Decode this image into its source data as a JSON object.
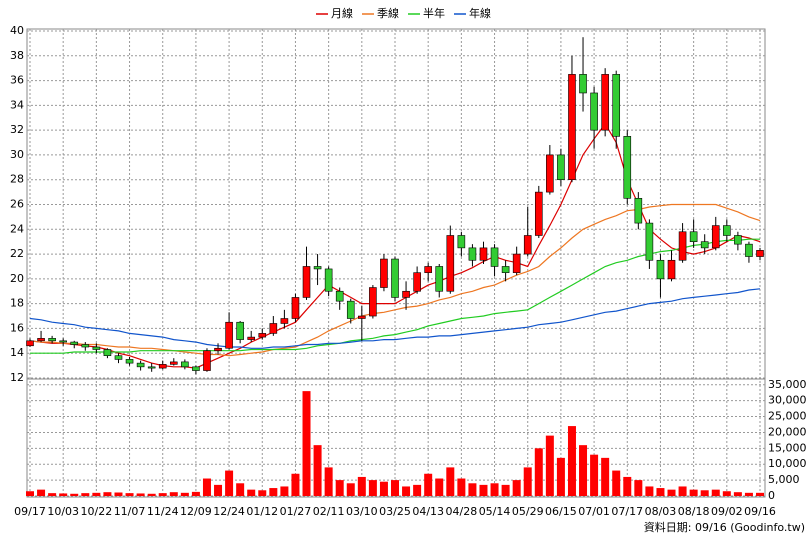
{
  "chart_data": {
    "type": "candlestick",
    "legend": "top",
    "grid": true,
    "footer": "資料日期: 09/16 (Goodinfo.tw)",
    "categories": [
      "09/17",
      null,
      null,
      "10/03",
      null,
      null,
      "10/22",
      null,
      null,
      "11/07",
      null,
      null,
      "11/24",
      null,
      null,
      "12/09",
      null,
      null,
      "12/24",
      null,
      null,
      "01/12",
      null,
      null,
      "01/27",
      null,
      null,
      "02/11",
      null,
      null,
      "03/10",
      null,
      null,
      "03/25",
      null,
      null,
      "04/13",
      null,
      null,
      "04/28",
      null,
      null,
      "05/14",
      null,
      null,
      "05/29",
      null,
      null,
      "06/15",
      null,
      null,
      "07/01",
      null,
      null,
      "07/17",
      null,
      null,
      "08/03",
      null,
      null,
      "08/18",
      null,
      null,
      "09/02",
      null,
      null,
      "09/16"
    ],
    "open": [
      14.6,
      15.0,
      15.2,
      15.0,
      14.9,
      14.7,
      14.5,
      14.3,
      13.8,
      13.5,
      13.2,
      12.9,
      12.8,
      13.1,
      13.3,
      12.9,
      12.6,
      14.2,
      14.4,
      16.5,
      15.1,
      15.3,
      15.6,
      16.4,
      16.8,
      18.5,
      21.0,
      20.8,
      19.0,
      18.2,
      16.8,
      17.0,
      19.3,
      21.6,
      18.5,
      19.0,
      20.5,
      21.0,
      19.0,
      23.5,
      22.5,
      21.5,
      22.5,
      21.0,
      20.5,
      22.0,
      23.5,
      27.0,
      30.0,
      28.0,
      36.5,
      35.0,
      32.0,
      36.5,
      31.5,
      26.5,
      24.5,
      21.5,
      20.0,
      21.5,
      23.8,
      23.0,
      22.5,
      24.3,
      23.5,
      22.8,
      21.8
    ],
    "high": [
      15.2,
      15.8,
      15.4,
      15.2,
      15.0,
      14.9,
      14.8,
      14.4,
      14.0,
      13.7,
      13.4,
      13.2,
      13.4,
      13.6,
      13.5,
      13.0,
      14.4,
      14.8,
      17.3,
      16.6,
      15.8,
      16.0,
      17.0,
      17.5,
      18.8,
      22.6,
      22.0,
      21.0,
      19.3,
      18.4,
      17.8,
      19.5,
      22.0,
      21.8,
      19.8,
      21.0,
      21.3,
      21.2,
      24.3,
      23.8,
      22.8,
      23.0,
      22.8,
      21.5,
      22.6,
      25.8,
      27.5,
      30.8,
      30.5,
      38.0,
      39.5,
      35.5,
      37.0,
      36.8,
      32.0,
      27.0,
      24.8,
      22.0,
      22.3,
      24.5,
      24.8,
      23.6,
      25.0,
      24.8,
      23.8,
      23.0,
      22.5
    ],
    "low": [
      14.5,
      14.9,
      14.8,
      14.6,
      14.4,
      14.2,
      14.0,
      13.6,
      13.2,
      13.0,
      12.6,
      12.5,
      12.7,
      13.0,
      12.7,
      12.3,
      12.5,
      13.9,
      14.3,
      14.8,
      14.9,
      15.1,
      15.4,
      16.0,
      16.5,
      18.3,
      19.5,
      18.6,
      17.5,
      16.4,
      15.0,
      16.8,
      19.0,
      18.2,
      17.5,
      18.8,
      19.8,
      18.5,
      18.8,
      21.8,
      21.0,
      21.2,
      20.2,
      19.8,
      20.3,
      21.8,
      23.3,
      26.8,
      27.5,
      27.8,
      33.5,
      30.5,
      31.5,
      30.5,
      26.0,
      24.0,
      20.8,
      18.5,
      19.8,
      21.3,
      22.5,
      22.0,
      22.3,
      23.0,
      22.3,
      21.3,
      21.5
    ],
    "close": [
      15.0,
      15.2,
      15.0,
      14.9,
      14.7,
      14.5,
      14.3,
      13.8,
      13.5,
      13.2,
      12.9,
      12.8,
      13.1,
      13.3,
      12.9,
      12.6,
      14.2,
      14.4,
      16.5,
      15.1,
      15.3,
      15.6,
      16.4,
      16.8,
      18.5,
      21.0,
      20.8,
      19.0,
      18.2,
      16.8,
      17.0,
      19.3,
      21.6,
      18.5,
      19.0,
      20.5,
      21.0,
      19.0,
      23.5,
      22.5,
      21.5,
      22.5,
      21.0,
      20.5,
      22.0,
      23.5,
      27.0,
      30.0,
      28.0,
      36.5,
      35.0,
      32.0,
      36.5,
      31.5,
      26.5,
      24.5,
      21.5,
      20.0,
      21.5,
      23.8,
      23.0,
      22.5,
      24.3,
      23.5,
      22.8,
      21.8,
      22.3
    ],
    "volume": [
      1500,
      2000,
      900,
      800,
      700,
      900,
      1000,
      1200,
      1100,
      900,
      800,
      700,
      900,
      1200,
      1000,
      1300,
      5500,
      3500,
      8000,
      4000,
      2000,
      1800,
      2500,
      3000,
      7000,
      33000,
      16000,
      9000,
      5000,
      4000,
      6000,
      5000,
      4500,
      5000,
      3000,
      3500,
      7000,
      5500,
      9000,
      5500,
      4000,
      3500,
      4000,
      3500,
      5000,
      9000,
      15000,
      19000,
      12000,
      22000,
      16000,
      13000,
      12000,
      8000,
      6000,
      5000,
      3000,
      2500,
      2000,
      3000,
      2000,
      1800,
      2000,
      1500,
      1200,
      1000,
      1000
    ],
    "up_color": "#ff0000",
    "down_color": "#33cc33",
    "volume_color": "#ff0000",
    "series": [
      {
        "name": "月線",
        "color": "#dd0000",
        "values": [
          15.0,
          14.9,
          14.8,
          14.8,
          14.7,
          14.6,
          14.5,
          14.3,
          14.0,
          13.8,
          13.5,
          13.2,
          13.0,
          12.9,
          12.9,
          12.8,
          13.2,
          13.6,
          14.0,
          14.4,
          14.9,
          15.3,
          15.7,
          16.1,
          16.5,
          17.5,
          18.5,
          19.5,
          19.0,
          18.5,
          18.0,
          18.0,
          18.0,
          18.0,
          18.5,
          19.0,
          19.5,
          19.8,
          20.2,
          20.5,
          20.9,
          21.4,
          21.8,
          21.5,
          21.3,
          21.0,
          22.7,
          24.3,
          26.0,
          28.0,
          30.0,
          31.3,
          32.5,
          31.0,
          28.0,
          26.0,
          24.0,
          23.2,
          22.5,
          22.2,
          22.0,
          22.2,
          22.5,
          23.0,
          23.5,
          23.3,
          23.0
        ]
      },
      {
        "name": "季線",
        "color": "#ee7722",
        "values": [
          15.0,
          14.9,
          14.9,
          14.8,
          14.8,
          14.7,
          14.7,
          14.6,
          14.5,
          14.5,
          14.4,
          14.4,
          14.3,
          14.2,
          14.1,
          14.0,
          13.9,
          13.9,
          13.8,
          13.9,
          14.0,
          14.1,
          14.3,
          14.4,
          14.5,
          14.9,
          15.3,
          15.8,
          16.2,
          16.6,
          17.0,
          17.2,
          17.3,
          17.5,
          17.7,
          17.8,
          18.0,
          18.3,
          18.5,
          18.8,
          19.0,
          19.3,
          19.5,
          19.9,
          20.3,
          20.6,
          21.0,
          21.8,
          22.5,
          23.3,
          24.0,
          24.4,
          24.8,
          25.1,
          25.5,
          25.6,
          25.8,
          25.9,
          26.0,
          26.0,
          26.0,
          26.0,
          26.0,
          25.7,
          25.4,
          25.0,
          24.7
        ]
      },
      {
        "name": "半年",
        "color": "#22cc22",
        "values": [
          14.0,
          14.0,
          14.0,
          14.0,
          14.1,
          14.1,
          14.1,
          14.1,
          14.1,
          14.1,
          14.2,
          14.2,
          14.2,
          14.2,
          14.2,
          14.2,
          14.2,
          14.2,
          14.2,
          14.2,
          14.3,
          14.3,
          14.3,
          14.3,
          14.3,
          14.4,
          14.6,
          14.7,
          14.8,
          15.0,
          15.1,
          15.2,
          15.4,
          15.5,
          15.7,
          15.9,
          16.2,
          16.4,
          16.6,
          16.8,
          16.9,
          17.0,
          17.2,
          17.3,
          17.4,
          17.5,
          18.0,
          18.5,
          19.0,
          19.5,
          20.0,
          20.5,
          21.0,
          21.3,
          21.5,
          21.8,
          22.0,
          22.2,
          22.3,
          22.5,
          22.7,
          22.8,
          23.0,
          23.1,
          23.1,
          23.2,
          23.2
        ]
      },
      {
        "name": "年線",
        "color": "#1155cc",
        "values": [
          16.8,
          16.7,
          16.5,
          16.4,
          16.3,
          16.1,
          16.0,
          15.9,
          15.8,
          15.6,
          15.5,
          15.4,
          15.3,
          15.1,
          15.0,
          14.9,
          14.7,
          14.6,
          14.5,
          14.5,
          14.4,
          14.4,
          14.5,
          14.5,
          14.6,
          14.7,
          14.7,
          14.8,
          14.8,
          14.9,
          15.0,
          15.0,
          15.1,
          15.1,
          15.2,
          15.3,
          15.3,
          15.4,
          15.4,
          15.5,
          15.6,
          15.7,
          15.8,
          15.9,
          16.0,
          16.1,
          16.3,
          16.4,
          16.5,
          16.7,
          16.9,
          17.1,
          17.3,
          17.4,
          17.6,
          17.8,
          18.0,
          18.1,
          18.2,
          18.4,
          18.5,
          18.6,
          18.7,
          18.8,
          18.9,
          19.1,
          19.2
        ]
      }
    ],
    "ylim": [
      12,
      40
    ],
    "yticks": [
      12,
      14,
      16,
      18,
      20,
      22,
      24,
      26,
      28,
      30,
      32,
      34,
      36,
      38,
      40
    ],
    "y2lim": [
      0,
      36500
    ],
    "y2ticks": [
      0,
      {
        "value": 5000,
        "label": "5,000"
      },
      {
        "value": 10000,
        "label": "10,000"
      },
      {
        "value": 15000,
        "label": "15,000"
      },
      {
        "value": 20000,
        "label": "20,000"
      },
      {
        "value": 25000,
        "label": "25,000"
      },
      {
        "value": 30000,
        "label": "30,000"
      },
      {
        "value": 35000,
        "label": "35,000"
      }
    ]
  }
}
